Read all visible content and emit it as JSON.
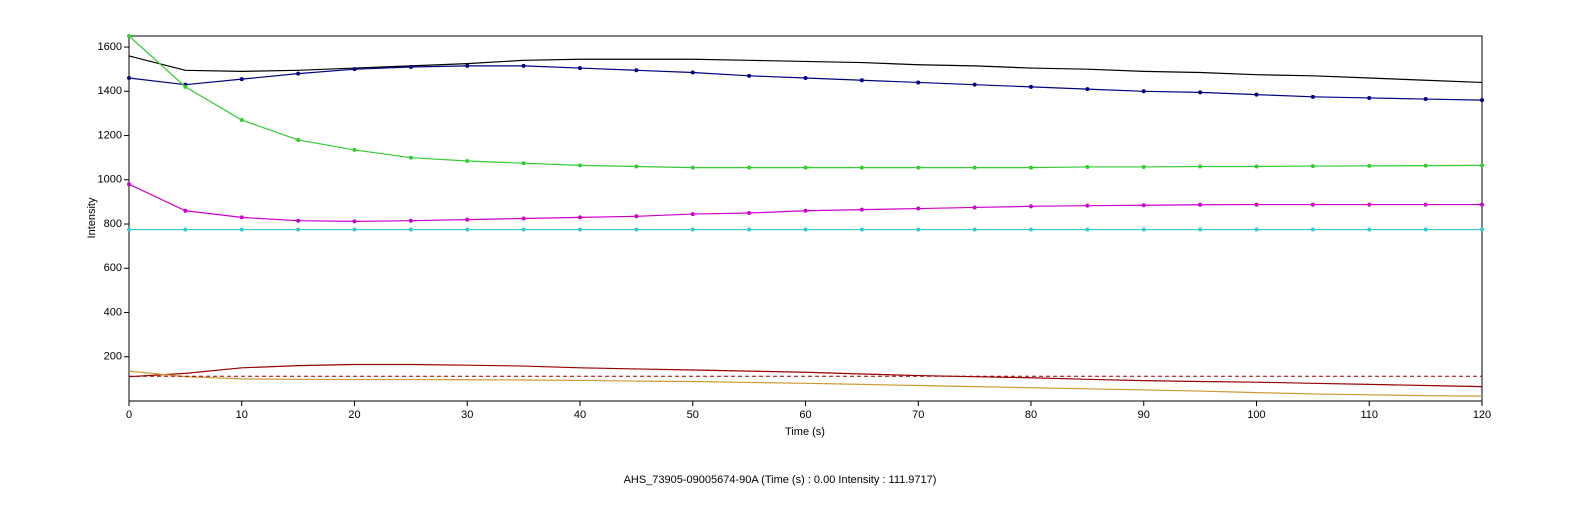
{
  "chart_data": {
    "type": "line",
    "xlabel": "Time (s)",
    "ylabel": "Intensity",
    "footer": "AHS_73905-09005674-90A (Time (s) : 0.00  Intensity : 111.9717)",
    "x": [
      0,
      5,
      10,
      15,
      20,
      25,
      30,
      35,
      40,
      45,
      50,
      55,
      60,
      65,
      70,
      75,
      80,
      85,
      90,
      95,
      100,
      105,
      110,
      115,
      120
    ],
    "xlim": [
      0,
      120
    ],
    "xticks": [
      0,
      10,
      20,
      30,
      40,
      50,
      60,
      70,
      80,
      90,
      100,
      110,
      120
    ],
    "ylim": [
      0,
      1650
    ],
    "yticks": [
      200,
      400,
      600,
      800,
      1000,
      1200,
      1400,
      1600
    ],
    "series": [
      {
        "color": "#000000",
        "marker": false,
        "values": [
          1560,
          1495,
          1490,
          1495,
          1505,
          1515,
          1525,
          1540,
          1545,
          1545,
          1545,
          1540,
          1535,
          1530,
          1520,
          1515,
          1505,
          1500,
          1490,
          1485,
          1475,
          1470,
          1460,
          1450,
          1440
        ]
      },
      {
        "color": "#000080",
        "marker": true,
        "values": [
          1460,
          1430,
          1455,
          1480,
          1500,
          1510,
          1515,
          1515,
          1505,
          1495,
          1485,
          1470,
          1460,
          1450,
          1440,
          1430,
          1420,
          1410,
          1400,
          1395,
          1385,
          1375,
          1370,
          1365,
          1360
        ]
      },
      {
        "color": "#33cc33",
        "marker": true,
        "values": [
          1650,
          1420,
          1270,
          1180,
          1135,
          1100,
          1085,
          1075,
          1065,
          1060,
          1055,
          1055,
          1055,
          1055,
          1055,
          1055,
          1055,
          1058,
          1058,
          1060,
          1060,
          1062,
          1063,
          1064,
          1065
        ]
      },
      {
        "color": "#cc00cc",
        "marker": true,
        "values": [
          980,
          860,
          830,
          815,
          812,
          815,
          820,
          825,
          830,
          835,
          845,
          850,
          860,
          865,
          870,
          875,
          880,
          883,
          885,
          887,
          888,
          888,
          888,
          888,
          888
        ]
      },
      {
        "color": "#33cccc",
        "marker": true,
        "values": [
          775,
          775,
          775,
          775,
          775,
          775,
          775,
          775,
          775,
          775,
          775,
          775,
          775,
          775,
          775,
          775,
          775,
          775,
          775,
          775,
          775,
          775,
          775,
          775,
          775
        ]
      },
      {
        "color": "#990000",
        "marker": false,
        "values": [
          110,
          125,
          150,
          160,
          165,
          165,
          162,
          158,
          150,
          145,
          140,
          135,
          130,
          122,
          115,
          110,
          105,
          98,
          92,
          88,
          85,
          80,
          75,
          70,
          65
        ]
      },
      {
        "color": "#cc9933",
        "marker": false,
        "values": [
          135,
          110,
          100,
          98,
          97,
          97,
          96,
          95,
          93,
          90,
          88,
          84,
          80,
          75,
          70,
          65,
          60,
          55,
          50,
          45,
          38,
          32,
          28,
          24,
          22
        ]
      }
    ],
    "hline": {
      "value": 111.9717,
      "color": "#990000"
    }
  }
}
